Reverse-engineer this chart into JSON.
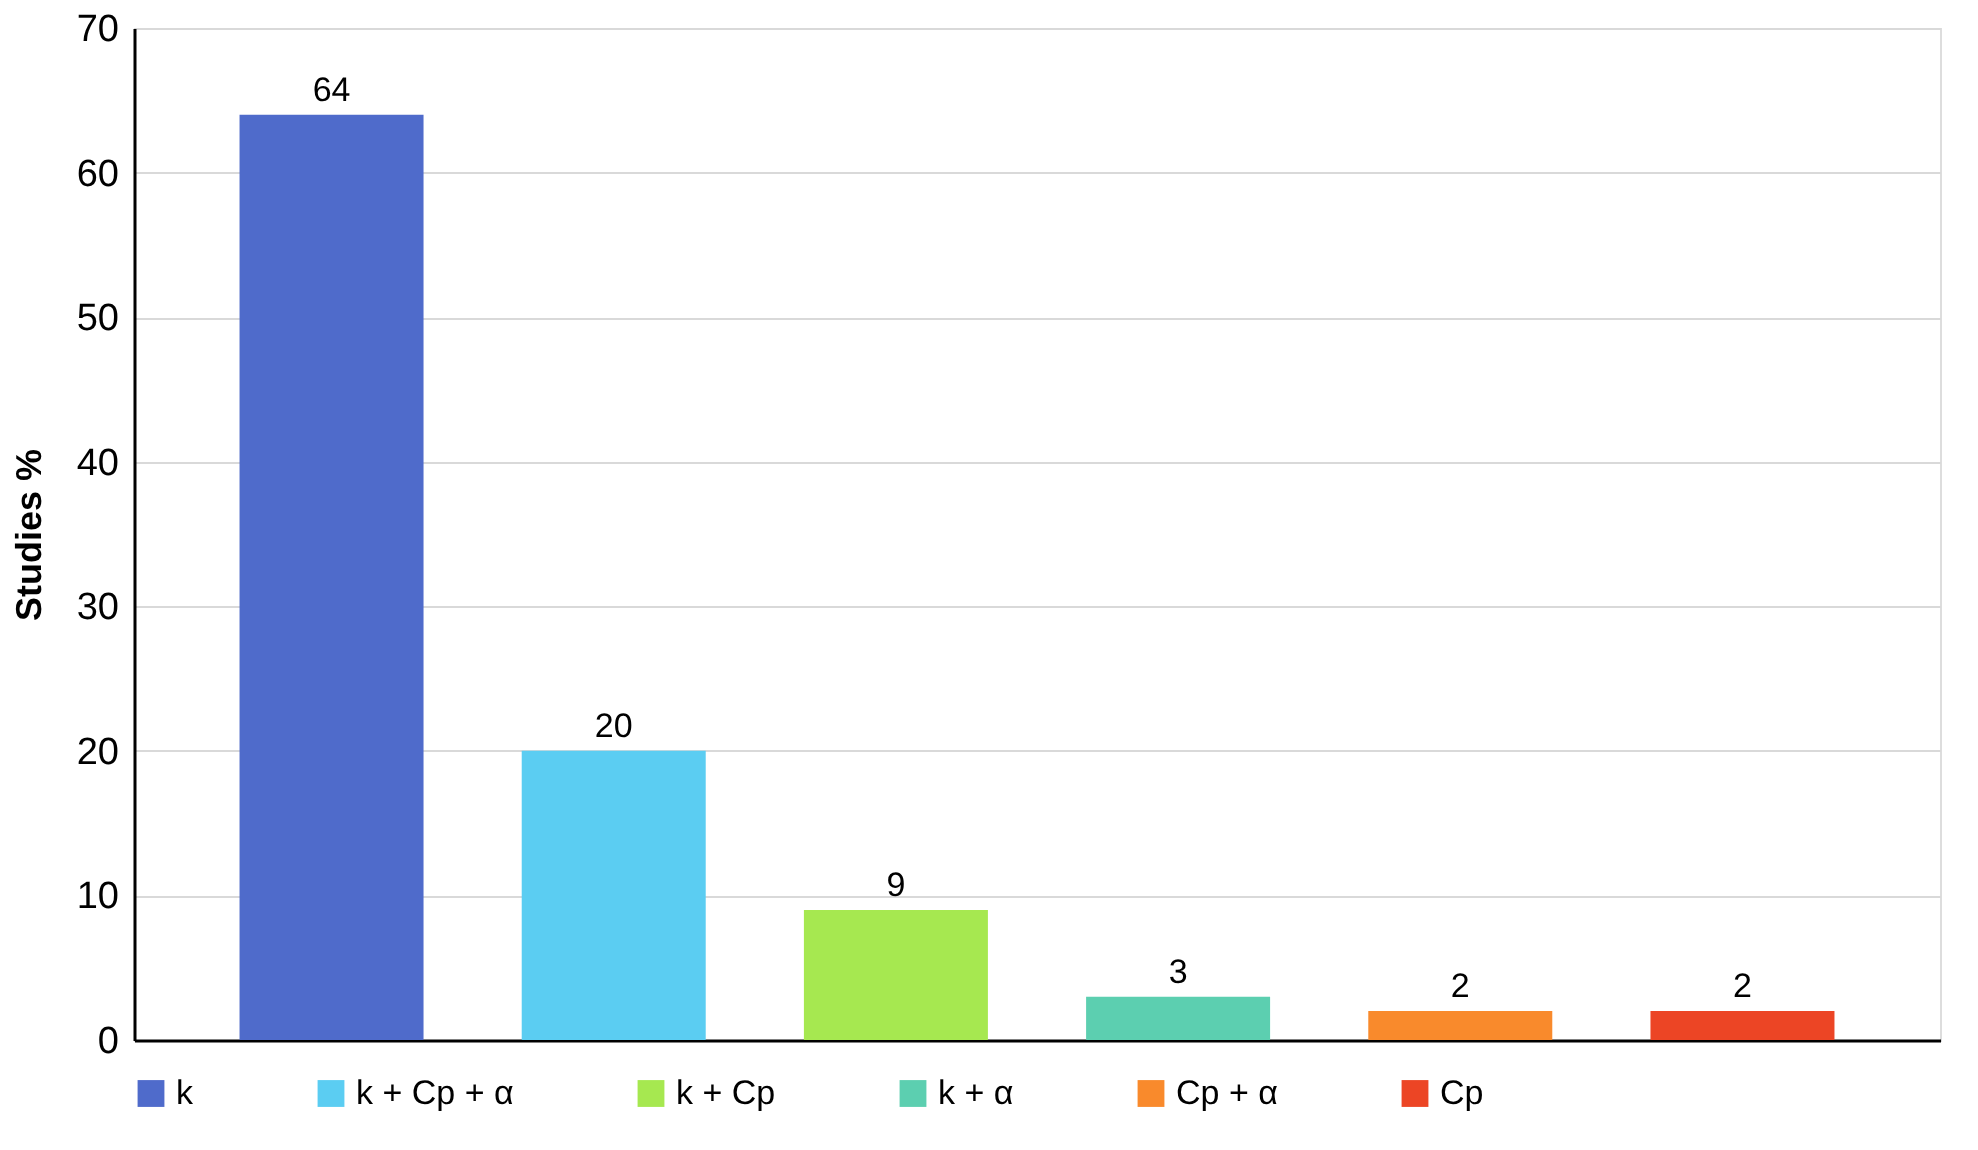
{
  "chart_data": {
    "type": "bar",
    "ylabel": "Studies %",
    "categories": [
      null,
      null,
      null,
      null,
      null,
      null
    ],
    "series": [
      {
        "name": "k",
        "color": "#4f6bcb",
        "values": [
          64,
          null,
          null,
          null,
          null,
          null
        ]
      },
      {
        "name": "k + Cp + α",
        "color": "#5bcdf2",
        "values": [
          null,
          20,
          null,
          null,
          null,
          null
        ]
      },
      {
        "name": "k + Cp",
        "color": "#a6e850",
        "values": [
          null,
          null,
          9,
          null,
          null,
          null
        ]
      },
      {
        "name": "k + α",
        "color": "#5ccfb0",
        "values": [
          null,
          null,
          null,
          3,
          null,
          null
        ]
      },
      {
        "name": "Cp + α",
        "color": "#f98a2c",
        "values": [
          null,
          null,
          null,
          null,
          2,
          null
        ]
      },
      {
        "name": "Cp",
        "color": "#ec4525",
        "values": [
          null,
          null,
          null,
          null,
          null,
          2
        ]
      }
    ],
    "ylim": [
      0,
      70
    ],
    "yticks": [
      0,
      10,
      20,
      30,
      40,
      50,
      60,
      70
    ],
    "grid": "y",
    "legend": "bottom",
    "data_labels": true,
    "tick_labels": "y"
  }
}
